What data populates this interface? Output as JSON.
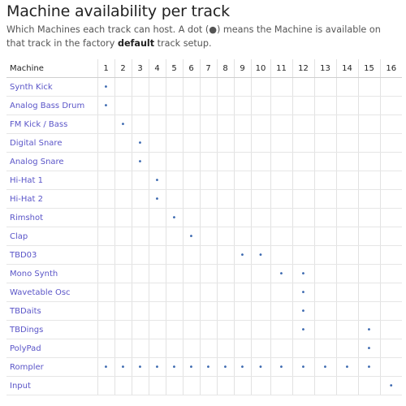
{
  "header": {
    "title": "Machine availability per track",
    "description": [
      "Which Machines each track can host. A dot (●) means the Machine is available on that track in the factory ",
      "default",
      " track setup."
    ]
  },
  "table": {
    "columns": [
      "Machine",
      "1",
      "2",
      "3",
      "4",
      "5",
      "6",
      "7",
      "8",
      "9",
      "10",
      "11",
      "12",
      "13",
      "14",
      "15",
      "16"
    ],
    "rows": [
      {
        "name": "Synth Kick",
        "cells": [
          "•",
          null,
          null,
          null,
          null,
          null,
          null,
          null,
          null,
          null,
          null,
          null,
          null,
          null,
          null,
          null
        ]
      },
      {
        "name": "Analog Bass Drum",
        "cells": [
          "•",
          null,
          null,
          null,
          null,
          null,
          null,
          null,
          null,
          null,
          null,
          null,
          null,
          null,
          null,
          null
        ]
      },
      {
        "name": "FM Kick / Bass",
        "cells": [
          null,
          "•",
          null,
          null,
          null,
          null,
          null,
          null,
          null,
          null,
          null,
          null,
          null,
          null,
          null,
          null
        ]
      },
      {
        "name": "Digital Snare",
        "cells": [
          null,
          null,
          "•",
          null,
          null,
          null,
          null,
          null,
          null,
          null,
          null,
          null,
          null,
          null,
          null,
          null
        ]
      },
      {
        "name": "Analog Snare",
        "cells": [
          null,
          null,
          "•",
          null,
          null,
          null,
          null,
          null,
          null,
          null,
          null,
          null,
          null,
          null,
          null,
          null
        ]
      },
      {
        "name": "Hi-Hat 1",
        "cells": [
          null,
          null,
          null,
          "•",
          null,
          null,
          null,
          null,
          null,
          null,
          null,
          null,
          null,
          null,
          null,
          null
        ]
      },
      {
        "name": "Hi-Hat 2",
        "cells": [
          null,
          null,
          null,
          "•",
          null,
          null,
          null,
          null,
          null,
          null,
          null,
          null,
          null,
          null,
          null,
          null
        ]
      },
      {
        "name": "Rimshot",
        "cells": [
          null,
          null,
          null,
          null,
          "•",
          null,
          null,
          null,
          null,
          null,
          null,
          null,
          null,
          null,
          null,
          null
        ]
      },
      {
        "name": "Clap",
        "cells": [
          null,
          null,
          null,
          null,
          null,
          "•",
          null,
          null,
          null,
          null,
          null,
          null,
          null,
          null,
          null,
          null
        ]
      },
      {
        "name": "TBD03",
        "cells": [
          null,
          null,
          null,
          null,
          null,
          null,
          null,
          null,
          "•",
          "•",
          null,
          null,
          null,
          null,
          null,
          null
        ]
      },
      {
        "name": "Mono Synth",
        "cells": [
          null,
          null,
          null,
          null,
          null,
          null,
          null,
          null,
          null,
          null,
          "•",
          "•",
          null,
          null,
          null,
          null
        ]
      },
      {
        "name": "Wavetable Osc",
        "cells": [
          null,
          null,
          null,
          null,
          null,
          null,
          null,
          null,
          null,
          null,
          null,
          "•",
          null,
          null,
          null,
          null
        ]
      },
      {
        "name": "TBDaits",
        "cells": [
          null,
          null,
          null,
          null,
          null,
          null,
          null,
          null,
          null,
          null,
          null,
          "•",
          null,
          null,
          null,
          null
        ]
      },
      {
        "name": "TBDings",
        "cells": [
          null,
          null,
          null,
          null,
          null,
          null,
          null,
          null,
          null,
          null,
          null,
          "•",
          null,
          null,
          "•",
          null
        ]
      },
      {
        "name": "PolyPad",
        "cells": [
          null,
          null,
          null,
          null,
          null,
          null,
          null,
          null,
          null,
          null,
          null,
          null,
          null,
          null,
          "•",
          null
        ]
      },
      {
        "name": "Rompler",
        "cells": [
          "•",
          "•",
          "•",
          "•",
          "•",
          "•",
          "•",
          "•",
          "•",
          "•",
          "•",
          "•",
          "•",
          "•",
          "•",
          null
        ]
      },
      {
        "name": "Input",
        "cells": [
          null,
          null,
          null,
          null,
          null,
          null,
          null,
          null,
          null,
          null,
          null,
          null,
          null,
          null,
          null,
          "•"
        ]
      }
    ]
  }
}
